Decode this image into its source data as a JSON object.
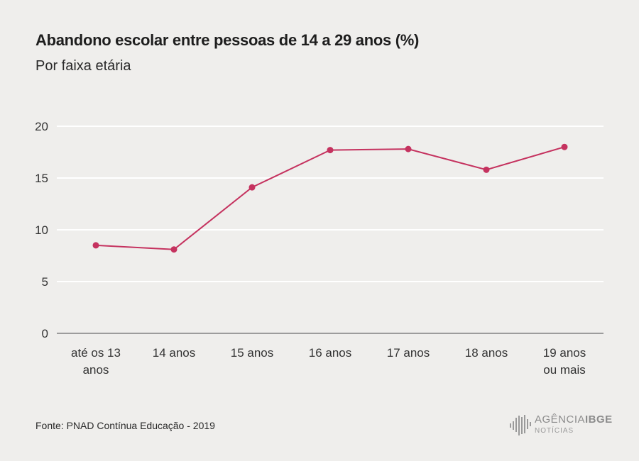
{
  "header": {
    "title": "Abandono escolar entre pessoas de 14 a 29 anos (%)",
    "subtitle": "Por faixa etária"
  },
  "footer": {
    "source": "Fonte: PNAD Contínua Educação - 2019",
    "logo_line1_a": "AGÊNCIA",
    "logo_line1_b": "IBGE",
    "logo_line2": "NOTÍCIAS"
  },
  "colors": {
    "line": "#c5325f",
    "grid": "#ffffff",
    "axis": "#6b6b6b",
    "tick_text": "#333333",
    "background": "#efeeec"
  },
  "chart_data": {
    "type": "line",
    "title": "Abandono escolar entre pessoas de 14 a 29 anos (%)",
    "subtitle": "Por faixa etária",
    "categories": [
      [
        "até os 13",
        "anos"
      ],
      [
        "14 anos"
      ],
      [
        "15 anos"
      ],
      [
        "16 anos"
      ],
      [
        "17 anos"
      ],
      [
        "18 anos"
      ],
      [
        "19 anos",
        "ou mais"
      ]
    ],
    "series": [
      {
        "values": [
          8.5,
          8.1,
          14.1,
          17.7,
          17.8,
          15.8,
          18.0
        ]
      }
    ],
    "yticks": [
      0,
      5,
      10,
      15,
      20
    ],
    "ylim": [
      0,
      20
    ],
    "grid": true,
    "legend": "none"
  }
}
